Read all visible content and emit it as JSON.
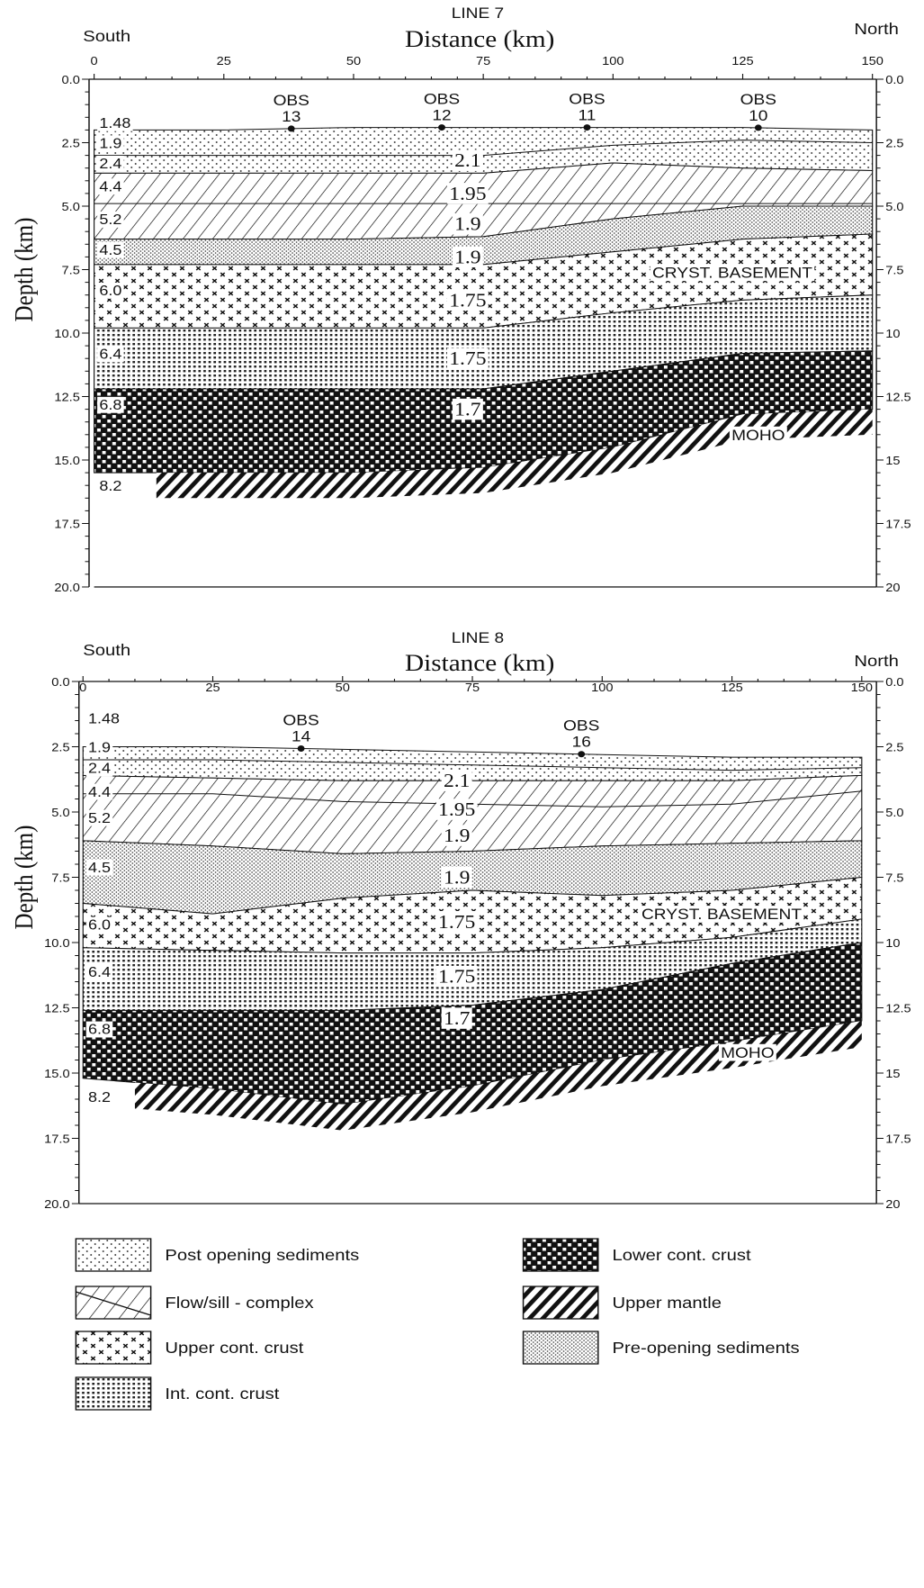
{
  "panels": [
    {
      "title": "LINE 7",
      "axis_title": "Distance (km)",
      "south": "South",
      "north": "North",
      "y_axis_title": "Depth (km)",
      "x_ticks": [
        "0",
        "25",
        "50",
        "75",
        "100",
        "125",
        "150"
      ],
      "y_ticks_left": [
        "0.0",
        "2.5",
        "5.0",
        "7.5",
        "10.0",
        "12.5",
        "15.0",
        "17.5",
        "20.0"
      ],
      "y_ticks_right": [
        "0.0",
        "2.5",
        "5.0",
        "7.5",
        "10",
        "12.5",
        "15",
        "17.5",
        "20"
      ],
      "obs": [
        {
          "label": "OBS",
          "number": "13"
        },
        {
          "label": "OBS",
          "number": "12"
        },
        {
          "label": "OBS",
          "number": "11"
        },
        {
          "label": "OBS",
          "number": "10"
        }
      ],
      "velocities": [
        "1.48",
        "1.9",
        "2.4",
        "4.4",
        "5.2",
        "4.5",
        "6.0",
        "6.4",
        "6.8",
        "8.2"
      ],
      "densities": [
        "2.1",
        "1.95",
        "1.9",
        "1.9",
        "1.75",
        "1.75",
        "1.7"
      ],
      "basement": "CRYST. BASEMENT",
      "moho": "MOHO"
    },
    {
      "title": "LINE 8",
      "axis_title": "Distance (km)",
      "south": "South",
      "north": "North",
      "y_axis_title": "Depth (km)",
      "x_ticks": [
        "0",
        "25",
        "50",
        "75",
        "100",
        "125",
        "150"
      ],
      "y_ticks_left": [
        "0.0",
        "2.5",
        "5.0",
        "7.5",
        "10.0",
        "12.5",
        "15.0",
        "17.5",
        "20.0"
      ],
      "y_ticks_right": [
        "0.0",
        "2.5",
        "5.0",
        "7.5",
        "10",
        "12.5",
        "15",
        "17.5",
        "20"
      ],
      "obs": [
        {
          "label": "OBS",
          "number": "14"
        },
        {
          "label": "OBS",
          "number": "16"
        }
      ],
      "velocities": [
        "1.48",
        "1.9",
        "2.4",
        "4.4",
        "5.2",
        "4.5",
        "6.0",
        "6.4",
        "6.8",
        "8.2"
      ],
      "densities": [
        "2.1",
        "1.95",
        "1.9",
        "1.9",
        "1.75",
        "1.75",
        "1.7"
      ],
      "basement": "CRYST. BASEMENT",
      "moho": "MOHO"
    }
  ],
  "legend": [
    "Post opening sediments",
    "Flow/sill - complex",
    "Upper cont. crust",
    "Int. cont. crust",
    "Lower cont. crust",
    "Upper mantle",
    "Pre-opening sediments"
  ]
}
